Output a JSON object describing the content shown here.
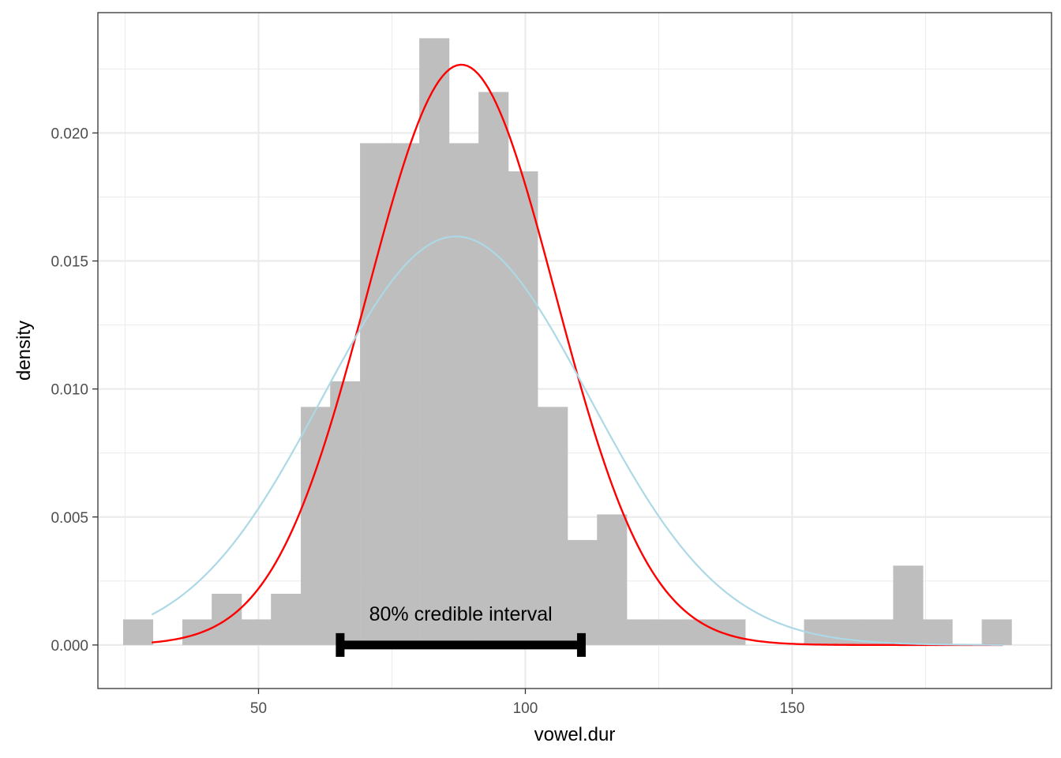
{
  "chart_data": {
    "type": "bar",
    "xlabel": "vowel.dur",
    "ylabel": "density",
    "xlim": [
      19.9,
      198.6
    ],
    "ylim": [
      -0.0017,
      0.0247
    ],
    "x_ticks": [
      50,
      100,
      150
    ],
    "x_tick_labels": [
      "50",
      "100",
      "150"
    ],
    "y_ticks": [
      0.0,
      0.005,
      0.01,
      0.015,
      0.02
    ],
    "y_tick_labels": [
      "0.000",
      "0.005",
      "0.010",
      "0.015",
      "0.020"
    ],
    "grid": true,
    "histogram": {
      "bin_width": 5.55,
      "color": "#bebebe",
      "bins": [
        {
          "x": 27.4,
          "y": 0.001
        },
        {
          "x": 38.5,
          "y": 0.001
        },
        {
          "x": 44.0,
          "y": 0.002
        },
        {
          "x": 49.6,
          "y": 0.001
        },
        {
          "x": 55.1,
          "y": 0.002
        },
        {
          "x": 60.7,
          "y": 0.0093
        },
        {
          "x": 66.2,
          "y": 0.0103
        },
        {
          "x": 71.8,
          "y": 0.0196
        },
        {
          "x": 77.3,
          "y": 0.0196
        },
        {
          "x": 82.9,
          "y": 0.0237
        },
        {
          "x": 88.4,
          "y": 0.0196
        },
        {
          "x": 94.0,
          "y": 0.0216
        },
        {
          "x": 99.5,
          "y": 0.0185
        },
        {
          "x": 105.1,
          "y": 0.0093
        },
        {
          "x": 110.6,
          "y": 0.0041
        },
        {
          "x": 116.2,
          "y": 0.0051
        },
        {
          "x": 121.7,
          "y": 0.001
        },
        {
          "x": 127.3,
          "y": 0.001
        },
        {
          "x": 132.8,
          "y": 0.001
        },
        {
          "x": 138.4,
          "y": 0.001
        },
        {
          "x": 155.0,
          "y": 0.001
        },
        {
          "x": 160.6,
          "y": 0.001
        },
        {
          "x": 166.1,
          "y": 0.001
        },
        {
          "x": 171.7,
          "y": 0.0031
        },
        {
          "x": 177.2,
          "y": 0.001
        },
        {
          "x": 188.3,
          "y": 0.001
        }
      ]
    },
    "series": [
      {
        "curve": "normal",
        "mean": 88.0,
        "sd": 17.6,
        "from": 30.0,
        "to": 189.5,
        "color": "#ff0000"
      },
      {
        "curve": "normal",
        "mean": 87.0,
        "sd": 25.0,
        "from": 30.0,
        "to": 189.5,
        "color": "#add8e6"
      }
    ],
    "annotations": [
      {
        "type": "interval",
        "from": 65.3,
        "to": 110.5,
        "y": 0.0,
        "color": "#000000"
      },
      {
        "type": "text",
        "text": "80% credible interval",
        "x": 87.9,
        "y": 0.00095
      }
    ]
  }
}
